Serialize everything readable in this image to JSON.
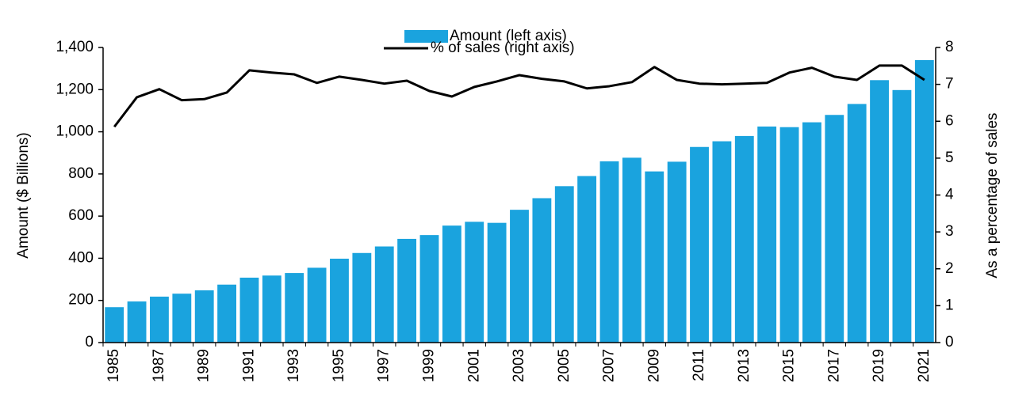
{
  "chart_data": {
    "type": "bar",
    "y_label": "Amount ($ Billions)",
    "y2_label": "As a percentage of sales",
    "categories": [
      "1985",
      null,
      "1987",
      null,
      "1989",
      null,
      "1991",
      null,
      "1993",
      null,
      "1995",
      null,
      "1997",
      null,
      "1999",
      null,
      "2001",
      null,
      "2003",
      null,
      "2005",
      null,
      "2007",
      null,
      "2009",
      null,
      "2011",
      null,
      "2013",
      null,
      "2015",
      null,
      "2017",
      null,
      "2019",
      null,
      "2021"
    ],
    "series": [
      {
        "name": "Amount (left axis)",
        "type": "bar",
        "color": "#1aa3de",
        "values": [
          168,
          195,
          218,
          232,
          248,
          275,
          308,
          318,
          330,
          355,
          398,
          425,
          456,
          492,
          510,
          555,
          573,
          568,
          630,
          685,
          742,
          790,
          860,
          877,
          812,
          858,
          928,
          955,
          980,
          1025,
          1022,
          1045,
          1080,
          1132,
          1245,
          1198,
          1340
        ]
      },
      {
        "name": "% of sales (right axis)",
        "type": "line",
        "axis": "y2",
        "color": "#000000",
        "values": [
          5.85,
          6.65,
          6.87,
          6.57,
          6.6,
          6.78,
          7.38,
          7.32,
          7.27,
          7.04,
          7.21,
          7.12,
          7.02,
          7.1,
          6.82,
          6.67,
          6.93,
          7.08,
          7.25,
          7.15,
          7.08,
          6.89,
          6.95,
          7.06,
          7.47,
          7.12,
          7.02,
          7.0,
          7.02,
          7.04,
          7.32,
          7.45,
          7.21,
          7.12,
          7.51,
          7.51,
          7.12
        ]
      }
    ],
    "ylim": [
      0,
      1400
    ],
    "yticks": [
      0,
      200,
      400,
      600,
      800,
      {
        "value": 1000,
        "label": "1,000"
      },
      {
        "value": 1200,
        "label": "1,200"
      },
      {
        "value": 1400,
        "label": "1,400"
      }
    ],
    "y2lim": [
      0,
      8
    ],
    "y2ticks": [
      0,
      1,
      2,
      3,
      4,
      5,
      6,
      7,
      8
    ],
    "legend": "top"
  }
}
